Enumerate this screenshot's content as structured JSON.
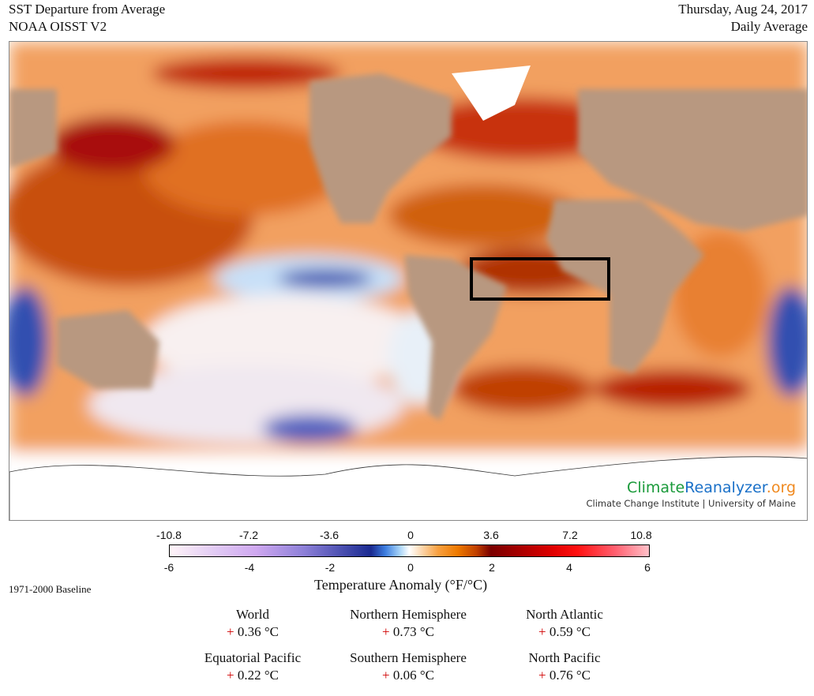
{
  "header": {
    "title": "SST Departure from Average",
    "subtitle": "NOAA OISST V2",
    "date": "Thursday, Aug 24, 2017",
    "period": "Daily Average"
  },
  "map": {
    "logo_green": "Climate",
    "logo_blue": "Reanalyzer",
    "logo_orange": ".org",
    "logo_sub": "Climate Change Institute | University of Maine",
    "highlight_box": "tropical Atlantic"
  },
  "colorbar": {
    "f_ticks": [
      "-10.8",
      "-7.2",
      "-3.6",
      "0",
      "3.6",
      "7.2",
      "10.8"
    ],
    "c_ticks": [
      "-6",
      "-4",
      "-2",
      "0",
      "2",
      "4",
      "6"
    ],
    "label": "Temperature Anomaly (°F/°C)",
    "baseline": "1971-2000 Baseline",
    "range_c": [
      -6,
      6
    ]
  },
  "stats": [
    {
      "name": "World",
      "sign": "+",
      "value": "0.36 °C"
    },
    {
      "name": "Northern Hemisphere",
      "sign": "+",
      "value": "0.73 °C"
    },
    {
      "name": "North Atlantic",
      "sign": "+",
      "value": "0.59 °C"
    },
    {
      "name": "Equatorial Pacific",
      "sign": "+",
      "value": "0.22 °C"
    },
    {
      "name": "Southern Hemisphere",
      "sign": "+",
      "value": "0.06 °C"
    },
    {
      "name": "North Pacific",
      "sign": "+",
      "value": "0.76 °C"
    }
  ],
  "colors": {
    "land": "#b89880",
    "warm": "#e8701a",
    "hot": "#9a0000",
    "cool": "#3040a8",
    "green": "#1a9a3a",
    "blue": "#1a70c8",
    "orange": "#f08a20"
  }
}
